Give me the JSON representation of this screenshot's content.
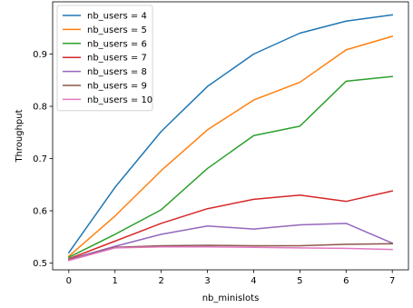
{
  "chart_data": {
    "type": "line",
    "title": "",
    "xlabel": "nb_minislots",
    "ylabel": "Throughput",
    "x": [
      0,
      1,
      2,
      3,
      4,
      5,
      6,
      7
    ],
    "xlim": [
      -0.35,
      7.35
    ],
    "ylim": [
      0.487,
      1.0
    ],
    "xticks": [
      0,
      1,
      2,
      3,
      4,
      5,
      6,
      7
    ],
    "yticks": [
      0.5,
      0.6,
      0.7,
      0.8,
      0.9
    ],
    "grid": false,
    "legend_position": "top-left",
    "series": [
      {
        "name": "nb_users = 4",
        "color": "#1f77b4",
        "values": [
          0.52,
          0.645,
          0.752,
          0.838,
          0.9,
          0.94,
          0.963,
          0.975
        ]
      },
      {
        "name": "nb_users = 5",
        "color": "#ff7f0e",
        "values": [
          0.513,
          0.59,
          0.677,
          0.755,
          0.812,
          0.846,
          0.908,
          0.934
        ]
      },
      {
        "name": "nb_users = 6",
        "color": "#2ca02c",
        "values": [
          0.511,
          0.555,
          0.602,
          0.681,
          0.744,
          0.762,
          0.848,
          0.857
        ]
      },
      {
        "name": "nb_users = 7",
        "color": "#d62728",
        "values": [
          0.508,
          0.542,
          0.576,
          0.604,
          0.622,
          0.63,
          0.618,
          0.638
        ]
      },
      {
        "name": "nb_users = 8",
        "color": "#9467bd",
        "values": [
          0.507,
          0.532,
          0.555,
          0.571,
          0.565,
          0.573,
          0.576,
          0.538
        ]
      },
      {
        "name": "nb_users = 9",
        "color": "#8c564b",
        "values": [
          0.506,
          0.53,
          0.533,
          0.534,
          0.533,
          0.533,
          0.536,
          0.537
        ]
      },
      {
        "name": "nb_users = 10",
        "color": "#e377c2",
        "values": [
          0.505,
          0.529,
          0.531,
          0.531,
          0.53,
          0.529,
          0.528,
          0.526
        ]
      }
    ]
  }
}
